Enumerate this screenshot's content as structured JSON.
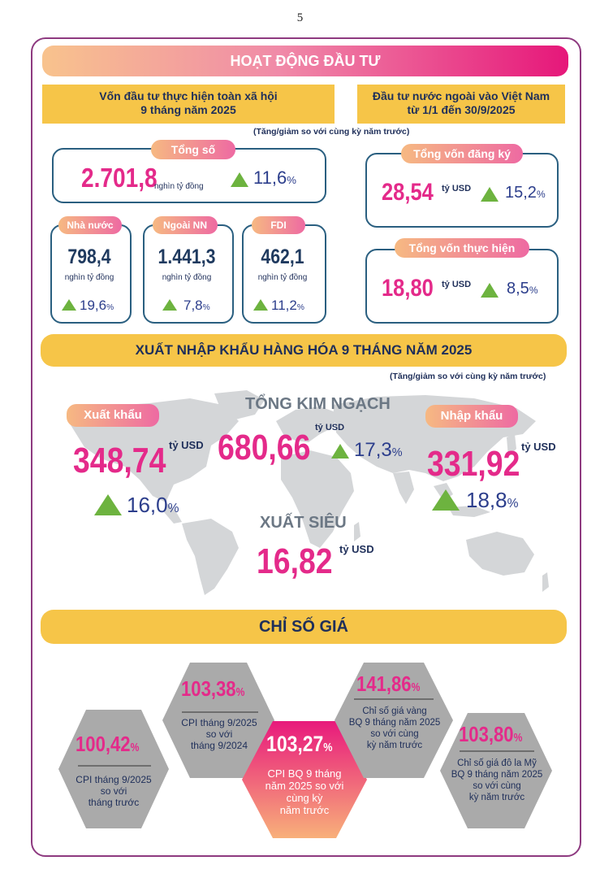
{
  "page_number": "5",
  "section1": {
    "title": "HOẠT ĐỘNG ĐẦU TƯ",
    "left_header_line1": "Vốn đầu tư thực hiện toàn xã hội",
    "left_header_line2": "9 tháng năm 2025",
    "right_header_line1": "Đầu tư nước ngoài vào Việt Nam",
    "right_header_line2": "từ 1/1 đến 30/9/2025",
    "note": "(Tăng/giảm so với cùng kỳ năm trước)",
    "total": {
      "label": "Tổng số",
      "value": "2.701,8",
      "unit": "nghìn tỷ đồng",
      "change": "11,6",
      "pct": "%"
    },
    "breakdown": [
      {
        "label": "Nhà nước",
        "value": "798,4",
        "unit": "nghìn tỷ đồng",
        "change": "19,6",
        "pct": "%"
      },
      {
        "label": "Ngoài NN",
        "value": "1.441,3",
        "unit": "nghìn tỷ đồng",
        "change": "7,8",
        "pct": "%"
      },
      {
        "label": "FDI",
        "value": "462,1",
        "unit": "nghìn tỷ đồng",
        "change": "11,2",
        "pct": "%"
      }
    ],
    "fdi_registered": {
      "label": "Tổng vốn đăng ký",
      "value": "28,54",
      "unit": "tỷ USD",
      "change": "15,2",
      "pct": "%"
    },
    "fdi_disbursed": {
      "label": "Tổng vốn thực hiện",
      "value": "18,80",
      "unit": "tỷ USD",
      "change": "8,5",
      "pct": "%"
    }
  },
  "section2": {
    "title": "XUẤT NHẬP KHẨU HÀNG HÓA 9 THÁNG NĂM 2025",
    "note": "(Tăng/giảm so với cùng kỳ năm trước)",
    "export": {
      "label": "Xuất khẩu",
      "value": "348,74",
      "unit": "tỷ USD",
      "change": "16,0",
      "pct": "%"
    },
    "total": {
      "label": "TỔNG KIM NGẠCH",
      "value": "680,66",
      "unit": "tỷ USD",
      "change": "17,3",
      "pct": "%"
    },
    "import": {
      "label": "Nhập khẩu",
      "value": "331,92",
      "unit": "tỷ USD",
      "change": "18,8",
      "pct": "%"
    },
    "surplus": {
      "label": "XUẤT SIÊU",
      "value": "16,82",
      "unit": "tỷ USD"
    }
  },
  "section3": {
    "title": "CHỈ SỐ GIÁ",
    "items": [
      {
        "value": "100,42",
        "pct": "%",
        "line1": "CPI tháng 9/2025",
        "line2": "so với",
        "line3": "tháng trước",
        "line4": ""
      },
      {
        "value": "103,38",
        "pct": "%",
        "line1": "CPI tháng 9/2025",
        "line2": "so với",
        "line3": "tháng 9/2024",
        "line4": ""
      },
      {
        "value": "103,27",
        "pct": "%",
        "line1": "CPI BQ 9 tháng",
        "line2": "năm 2025 so với",
        "line3": "cùng kỳ",
        "line4": "năm trước"
      },
      {
        "value": "141,86",
        "pct": "%",
        "line1": "Chỉ số giá vàng",
        "line2": "BQ 9 tháng năm 2025",
        "line3": "so với cùng",
        "line4": "kỳ năm trước"
      },
      {
        "value": "103,80",
        "pct": "%",
        "line1": "Chỉ số giá đô la Mỹ",
        "line2": "BQ 9 tháng năm 2025",
        "line3": "so với cùng",
        "line4": "kỳ năm trước"
      }
    ]
  },
  "colors": {
    "frame": "#8e3a80",
    "pink": "#e42a8a",
    "navy": "#1f3a5f",
    "yellow": "#f6c548",
    "green": "#6db33f",
    "hex_gray": "#a9a9a9"
  }
}
